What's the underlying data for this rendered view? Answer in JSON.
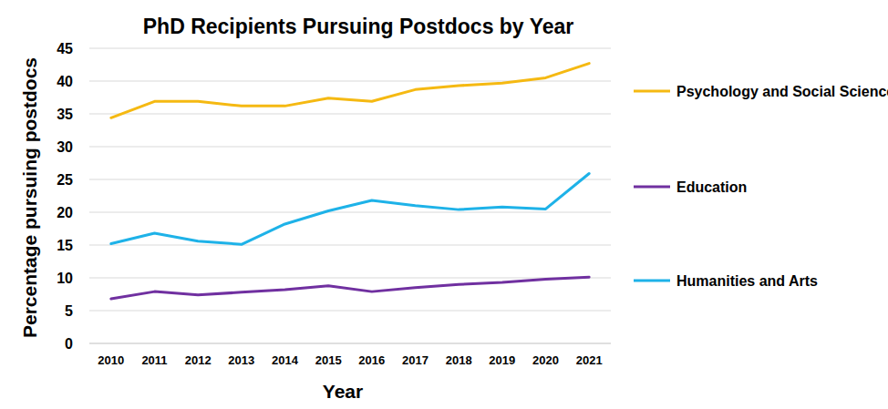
{
  "chart_data": {
    "type": "line",
    "title": "PhD Recipients Pursuing Postdocs by Year",
    "x_label": "Year",
    "y_label": "Percentage pursuing postdocs",
    "categories": [
      "2010",
      "2011",
      "2012",
      "2013",
      "2014",
      "2015",
      "2016",
      "2017",
      "2018",
      "2019",
      "2020",
      "2021"
    ],
    "series": [
      {
        "name": "Psychology and Social Sciences",
        "color": "#f5b912",
        "values": [
          34.4,
          36.9,
          36.9,
          36.2,
          36.2,
          37.4,
          36.9,
          38.7,
          39.3,
          39.7,
          40.5,
          42.7
        ]
      },
      {
        "name": "Education",
        "color": "#7030a0",
        "values": [
          6.8,
          7.9,
          7.4,
          7.8,
          8.2,
          8.8,
          7.9,
          8.5,
          9.0,
          9.3,
          9.8,
          10.1
        ]
      },
      {
        "name": "Humanities and Arts",
        "color": "#1eb2e8",
        "values": [
          15.2,
          16.8,
          15.6,
          15.1,
          18.2,
          20.2,
          21.8,
          21.0,
          20.4,
          20.8,
          20.5,
          25.9
        ]
      }
    ],
    "ylim": [
      0,
      45
    ],
    "yticks": [
      0,
      5,
      10,
      15,
      20,
      25,
      30,
      35,
      40,
      45
    ],
    "grid": true,
    "legend": "right"
  }
}
